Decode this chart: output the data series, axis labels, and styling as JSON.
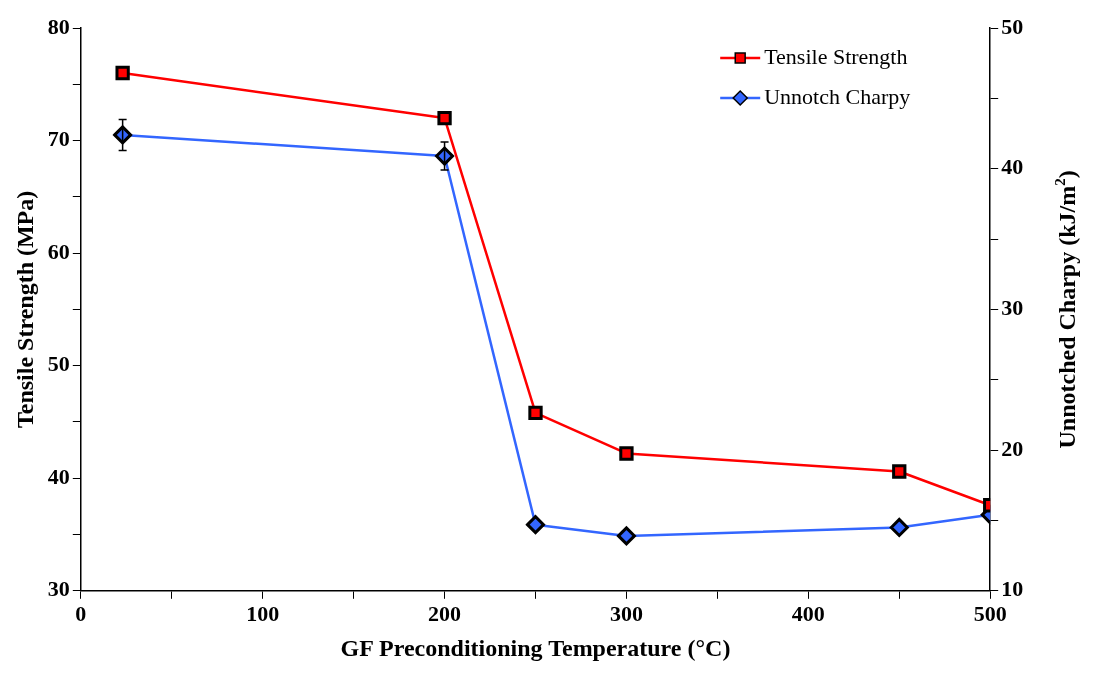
{
  "chart_data": {
    "type": "line",
    "xlabel": "GF Preconditioning Temperature (°C)",
    "ylabel": "Tensile Strength (MPa)",
    "y2label": "Unnotched Charpy (kJ/m$^{2}$)",
    "x": [
      23,
      200,
      250,
      300,
      450,
      500
    ],
    "xlim": [
      0,
      500
    ],
    "xticks": [
      0,
      {
        "value": 50,
        "label": null
      },
      100,
      {
        "value": 150,
        "label": null
      },
      200,
      {
        "value": 250,
        "label": null
      },
      300,
      {
        "value": 350,
        "label": null
      },
      400,
      {
        "value": 450,
        "label": null
      },
      500
    ],
    "ylim": [
      30,
      80
    ],
    "yticks": [
      30,
      {
        "value": 35,
        "label": null
      },
      40,
      {
        "value": 45,
        "label": null
      },
      50,
      {
        "value": 55,
        "label": null
      },
      60,
      {
        "value": 65,
        "label": null
      },
      70,
      {
        "value": 75,
        "label": null
      },
      80
    ],
    "y2lim": [
      10,
      50
    ],
    "y2ticks": [
      10,
      {
        "value": 15,
        "label": null
      },
      20,
      {
        "value": 25,
        "label": null
      },
      30,
      {
        "value": 35,
        "label": null
      },
      40,
      {
        "value": 45,
        "label": null
      },
      50
    ],
    "series": [
      {
        "name": "Tensile Strength",
        "color": "#ff0000",
        "marker": "square",
        "values": [
          76.0,
          72.0,
          45.8,
          42.2,
          40.6,
          37.6
        ]
      },
      {
        "name": "Unnotch Charpy",
        "color": "#3366ff",
        "marker": "diamond",
        "axis": "y2",
        "values": [
          42.4,
          40.9,
          14.7,
          13.9,
          14.5,
          15.4
        ],
        "errors": [
          1.1,
          1.0,
          null,
          null,
          null,
          null
        ]
      }
    ],
    "grid": false,
    "legend": "top right",
    "line_style": "solid"
  }
}
